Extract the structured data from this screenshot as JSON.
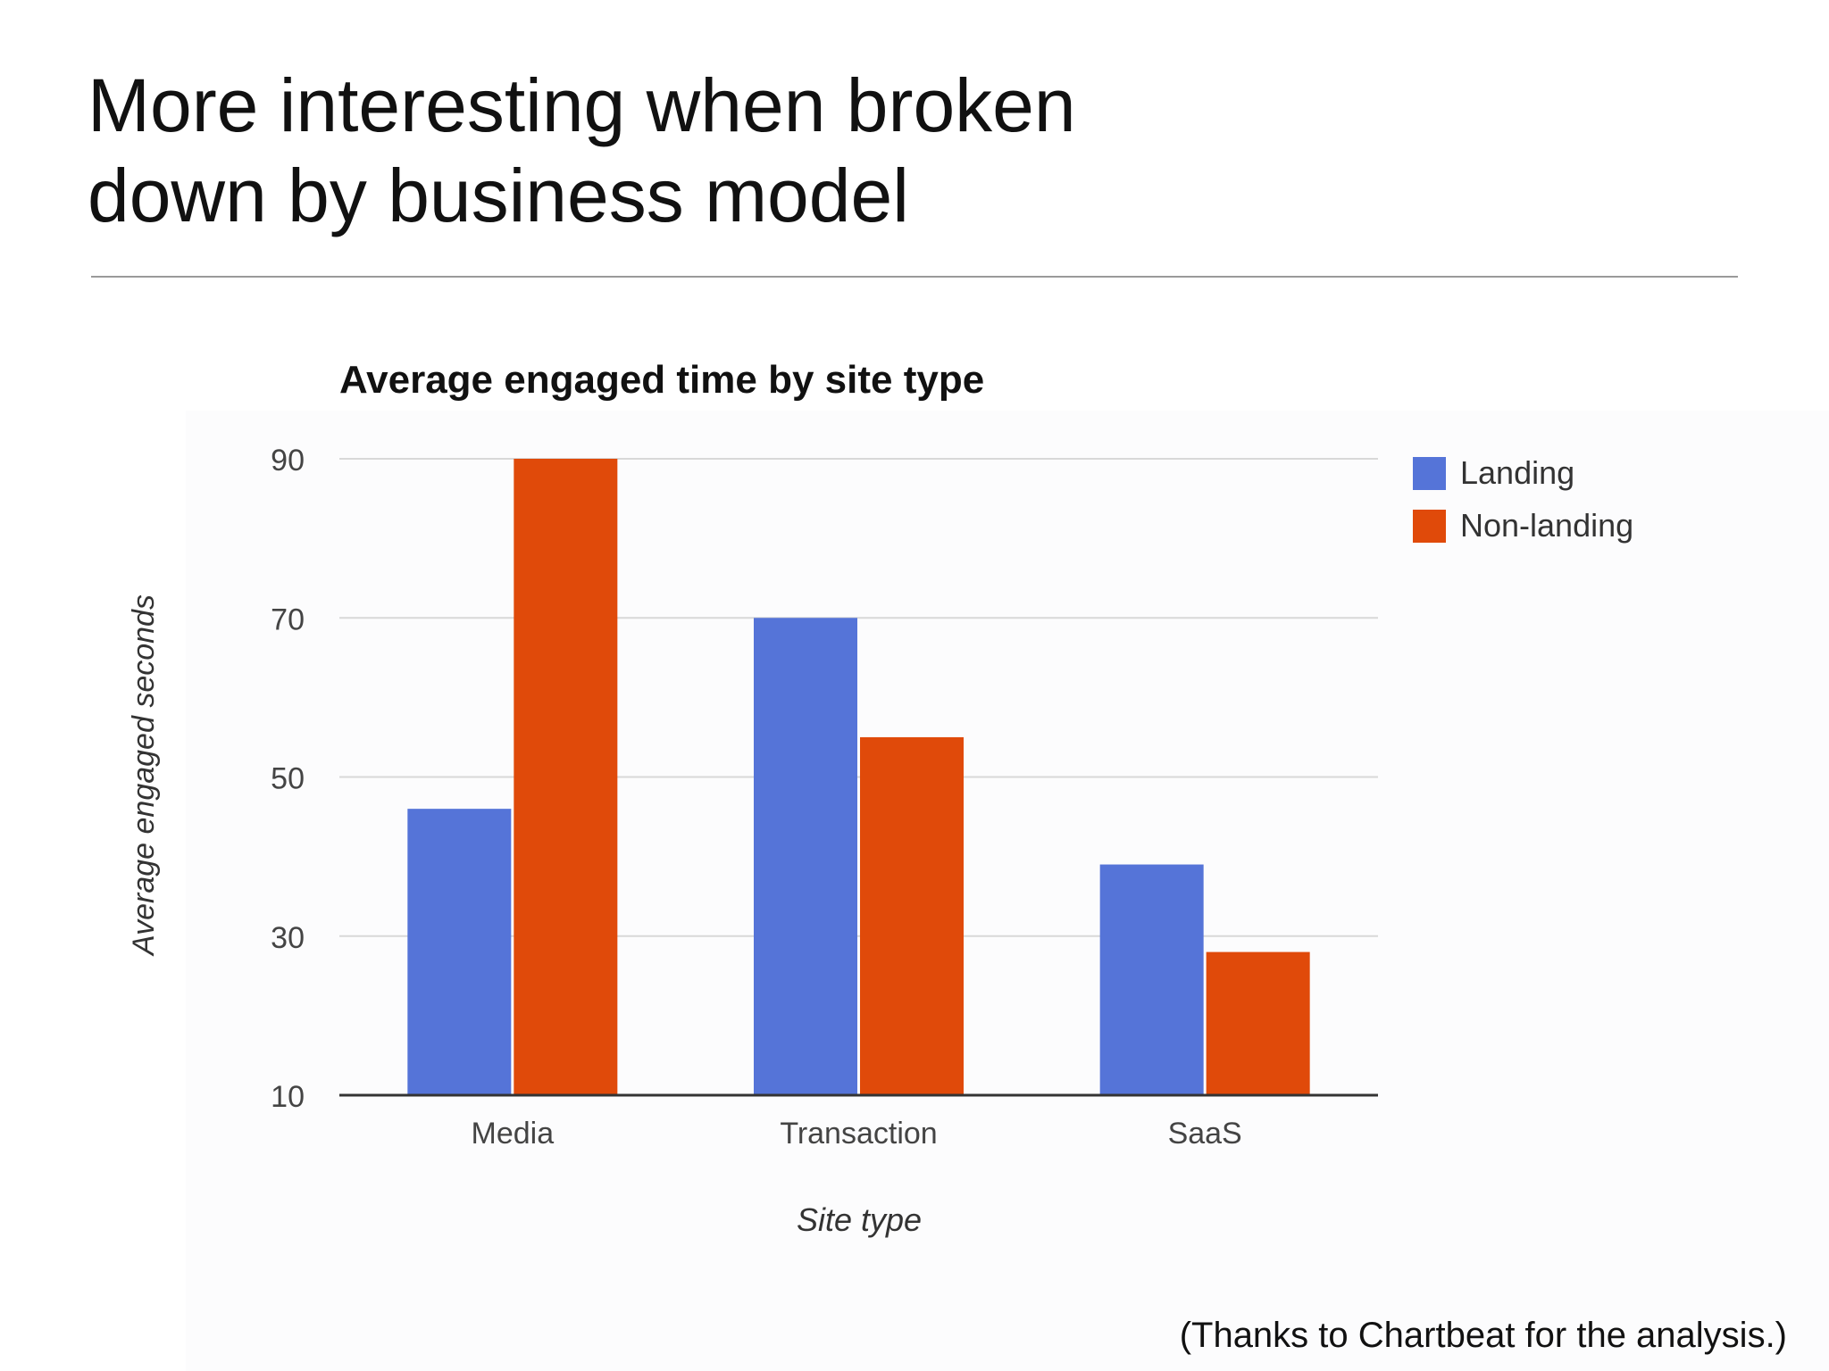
{
  "slide": {
    "title_line1": "More interesting when broken",
    "title_line2": "down by business model",
    "footnote": "(Thanks to Chartbeat for the analysis.)"
  },
  "chart_data": {
    "type": "bar",
    "title": "Average engaged time by site type",
    "xlabel": "Site type",
    "ylabel": "Average engaged seconds",
    "categories": [
      "Media",
      "Transaction",
      "SaaS"
    ],
    "series": [
      {
        "name": "Landing",
        "color": "#5574d8",
        "values": [
          46,
          70,
          39
        ]
      },
      {
        "name": "Non-landing",
        "color": "#e04a0a",
        "values": [
          90,
          55,
          28
        ]
      }
    ],
    "ylim": [
      10,
      90
    ],
    "yticks": [
      10,
      30,
      50,
      70,
      90
    ],
    "grid": true,
    "legend": "right"
  }
}
